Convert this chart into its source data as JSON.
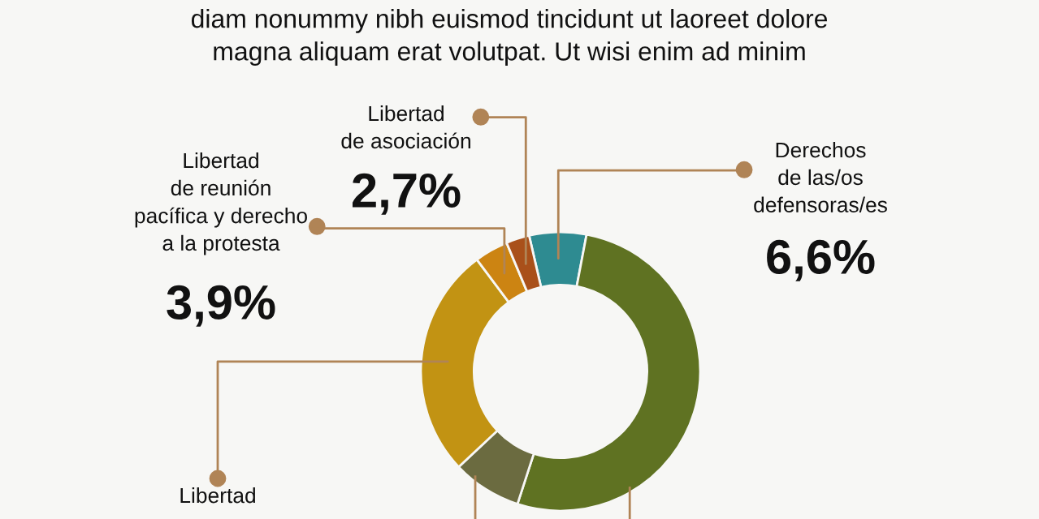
{
  "chart_data": {
    "type": "donut",
    "title": "diam nonummy nibh euismod tincidunt ut laoreet dolore\nmagna aliquam erat volutpat. Ut wisi enim ad minim",
    "categories": [
      "Derechos\nde las/os\ndefensoras/es",
      null,
      null,
      "Libertad",
      "Libertad\nde reunión\npacífica y derecho\na la protesta",
      "Libertad\nde asociación"
    ],
    "values": [
      6.6,
      52,
      8,
      26.8,
      3.9,
      2.7
    ],
    "colors": [
      "#2e8b91",
      "#5f7222",
      "#6b6b40",
      "#c29313",
      "#cc8412",
      "#a9501a"
    ],
    "value_labels": [
      "6,6%",
      null,
      null,
      null,
      "3,9%",
      "2,7%"
    ]
  }
}
